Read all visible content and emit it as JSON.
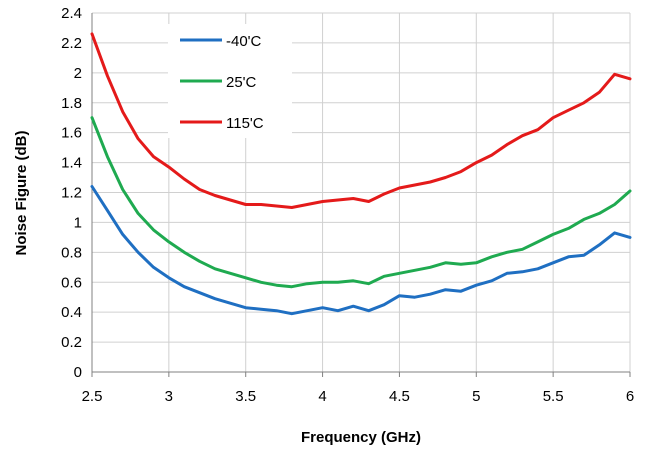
{
  "chart_data": {
    "type": "line",
    "title": "",
    "xlabel": "Frequency (GHz)",
    "ylabel": "Noise Figure (dB)",
    "xlim": [
      2.5,
      6
    ],
    "ylim": [
      0,
      2.4
    ],
    "xticks": [
      "2.5",
      "3",
      "3.5",
      "4",
      "4.5",
      "5",
      "5.5",
      "6"
    ],
    "yticks": [
      "0",
      "0.2",
      "0.4",
      "0.6",
      "0.8",
      "1",
      "1.2",
      "1.4",
      "1.6",
      "1.8",
      "2",
      "2.2",
      "2.4"
    ],
    "grid": true,
    "legend_position": "top-left",
    "x": [
      2.5,
      2.6,
      2.7,
      2.8,
      2.9,
      3.0,
      3.1,
      3.2,
      3.3,
      3.4,
      3.5,
      3.6,
      3.7,
      3.8,
      3.9,
      4.0,
      4.1,
      4.2,
      4.3,
      4.4,
      4.5,
      4.6,
      4.7,
      4.8,
      4.9,
      5.0,
      5.1,
      5.2,
      5.3,
      5.4,
      5.5,
      5.6,
      5.7,
      5.8,
      5.9,
      6.0
    ],
    "series": [
      {
        "name": "-40'C",
        "color": "#1f6fc2",
        "values": [
          1.24,
          1.08,
          0.92,
          0.8,
          0.7,
          0.63,
          0.57,
          0.53,
          0.49,
          0.46,
          0.43,
          0.42,
          0.41,
          0.39,
          0.41,
          0.43,
          0.41,
          0.44,
          0.41,
          0.45,
          0.51,
          0.5,
          0.52,
          0.55,
          0.54,
          0.58,
          0.61,
          0.66,
          0.67,
          0.69,
          0.73,
          0.77,
          0.78,
          0.85,
          0.93,
          0.9
        ]
      },
      {
        "name": "25'C",
        "color": "#1faa50",
        "values": [
          1.7,
          1.44,
          1.22,
          1.06,
          0.95,
          0.87,
          0.8,
          0.74,
          0.69,
          0.66,
          0.63,
          0.6,
          0.58,
          0.57,
          0.59,
          0.6,
          0.6,
          0.61,
          0.59,
          0.64,
          0.66,
          0.68,
          0.7,
          0.73,
          0.72,
          0.73,
          0.77,
          0.8,
          0.82,
          0.87,
          0.92,
          0.96,
          1.02,
          1.06,
          1.12,
          1.21
        ]
      },
      {
        "name": "115'C",
        "color": "#e41a1a",
        "values": [
          2.26,
          1.98,
          1.74,
          1.56,
          1.44,
          1.37,
          1.29,
          1.22,
          1.18,
          1.15,
          1.12,
          1.12,
          1.11,
          1.1,
          1.12,
          1.14,
          1.15,
          1.16,
          1.14,
          1.19,
          1.23,
          1.25,
          1.27,
          1.3,
          1.34,
          1.4,
          1.45,
          1.52,
          1.58,
          1.62,
          1.7,
          1.75,
          1.8,
          1.87,
          1.99,
          1.96
        ]
      }
    ]
  }
}
